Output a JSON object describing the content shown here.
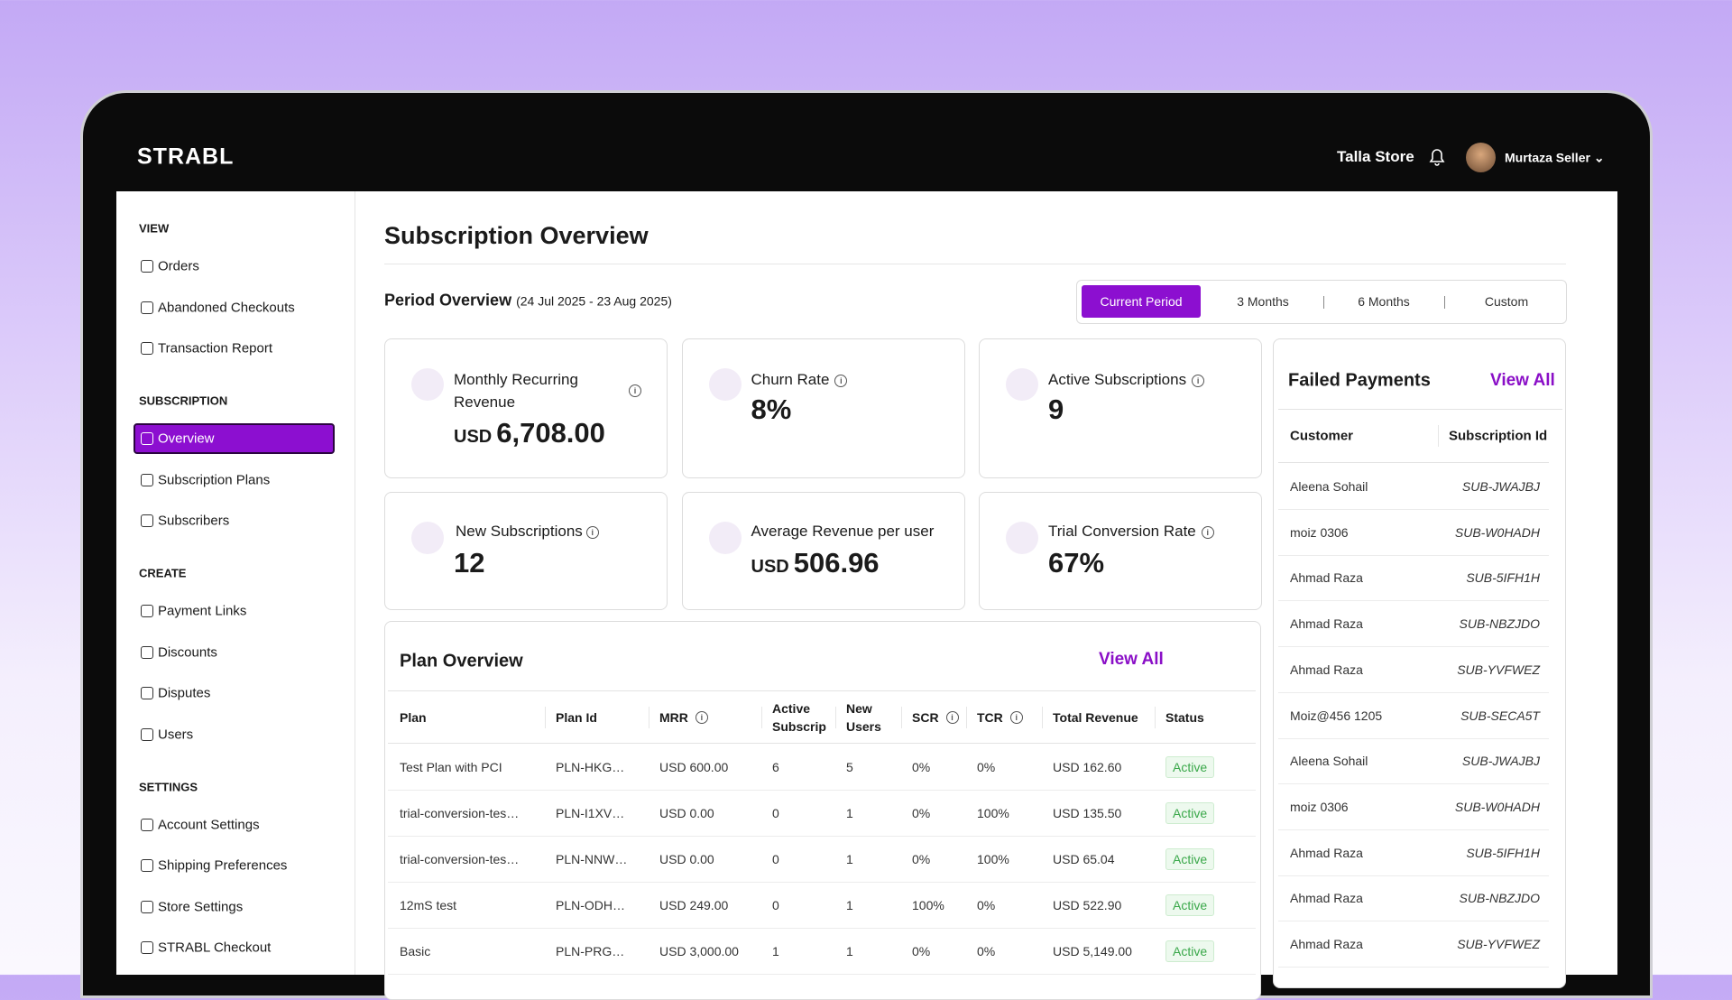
{
  "header": {
    "logo": "STRABL",
    "store": "Talla Store",
    "user": "Murtaza Seller"
  },
  "sidebar": {
    "sections": [
      {
        "title": "VIEW",
        "items": [
          {
            "label": "Orders"
          },
          {
            "label": "Abandoned Checkouts"
          },
          {
            "label": "Transaction Report"
          }
        ]
      },
      {
        "title": "SUBSCRIPTION",
        "items": [
          {
            "label": "Overview",
            "active": true
          },
          {
            "label": "Subscription Plans"
          },
          {
            "label": "Subscribers"
          }
        ]
      },
      {
        "title": "CREATE",
        "items": [
          {
            "label": "Payment Links"
          },
          {
            "label": "Discounts"
          },
          {
            "label": "Disputes"
          },
          {
            "label": "Users"
          }
        ]
      },
      {
        "title": "SETTINGS",
        "items": [
          {
            "label": "Account Settings"
          },
          {
            "label": "Shipping Preferences"
          },
          {
            "label": "Store Settings"
          },
          {
            "label": "STRABL Checkout"
          }
        ]
      }
    ]
  },
  "page": {
    "title": "Subscription Overview",
    "period_label": "Period Overview",
    "period_range": "(24 Jul 2025 - 23 Aug 2025)",
    "tabs": [
      {
        "label": "Current Period",
        "active": true
      },
      {
        "label": "3 Months"
      },
      {
        "label": "6 Months"
      },
      {
        "label": "Custom"
      }
    ]
  },
  "metrics": [
    {
      "label": "Monthly Recurring Revenue",
      "unit": "USD",
      "value": "6,708.00"
    },
    {
      "label": "Churn Rate",
      "value": "8%"
    },
    {
      "label": "Active Subscriptions",
      "value": "9"
    },
    {
      "label": "New Subscriptions",
      "value": "12"
    },
    {
      "label": "Average Revenue per user",
      "unit": "USD",
      "value": "506.96"
    },
    {
      "label": "Trial Conversion Rate",
      "value": "67%"
    }
  ],
  "plan_overview": {
    "title": "Plan Overview",
    "link": "View All",
    "columns": [
      {
        "label": "Plan"
      },
      {
        "label": "Plan Id"
      },
      {
        "label": "MRR",
        "info": true
      },
      {
        "label": "Active Subscrip"
      },
      {
        "label": "New Users"
      },
      {
        "label": "SCR",
        "info": true
      },
      {
        "label": "TCR",
        "info": true
      },
      {
        "label": "Total Revenue"
      },
      {
        "label": "Status"
      }
    ],
    "rows": [
      [
        "Test Plan with PCI",
        "PLN-HKG…",
        "USD 600.00",
        "6",
        "5",
        "0%",
        "0%",
        "USD 162.60",
        "Active"
      ],
      [
        "trial-conversion-tes…",
        "PLN-I1XV…",
        "USD 0.00",
        "0",
        "1",
        "0%",
        "100%",
        "USD 135.50",
        "Active"
      ],
      [
        "trial-conversion-tes…",
        "PLN-NNW…",
        "USD 0.00",
        "0",
        "1",
        "0%",
        "100%",
        "USD 65.04",
        "Active"
      ],
      [
        "12mS test",
        "PLN-ODH…",
        "USD 249.00",
        "0",
        "1",
        "100%",
        "0%",
        "USD 522.90",
        "Active"
      ],
      [
        "Basic",
        "PLN-PRG…",
        "USD 3,000.00",
        "1",
        "1",
        "0%",
        "0%",
        "USD 5,149.00",
        "Active"
      ]
    ]
  },
  "failed_payments": {
    "title": "Failed Payments",
    "link": "View All",
    "columns": [
      "Customer",
      "Subscription Id"
    ],
    "rows": [
      [
        "Aleena Sohail",
        "SUB-JWAJBJ"
      ],
      [
        "moiz 0306",
        "SUB-W0HADH"
      ],
      [
        "Ahmad Raza",
        "SUB-5IFH1H"
      ],
      [
        "Ahmad Raza",
        "SUB-NBZJDO"
      ],
      [
        "Ahmad Raza",
        "SUB-YVFWEZ"
      ],
      [
        "Moiz@456 1205",
        "SUB-SECA5T"
      ],
      [
        "Aleena Sohail",
        "SUB-JWAJBJ"
      ],
      [
        "moiz 0306",
        "SUB-W0HADH"
      ],
      [
        "Ahmad Raza",
        "SUB-5IFH1H"
      ],
      [
        "Ahmad Raza",
        "SUB-NBZJDO"
      ],
      [
        "Ahmad Raza",
        "SUB-YVFWEZ"
      ]
    ]
  }
}
